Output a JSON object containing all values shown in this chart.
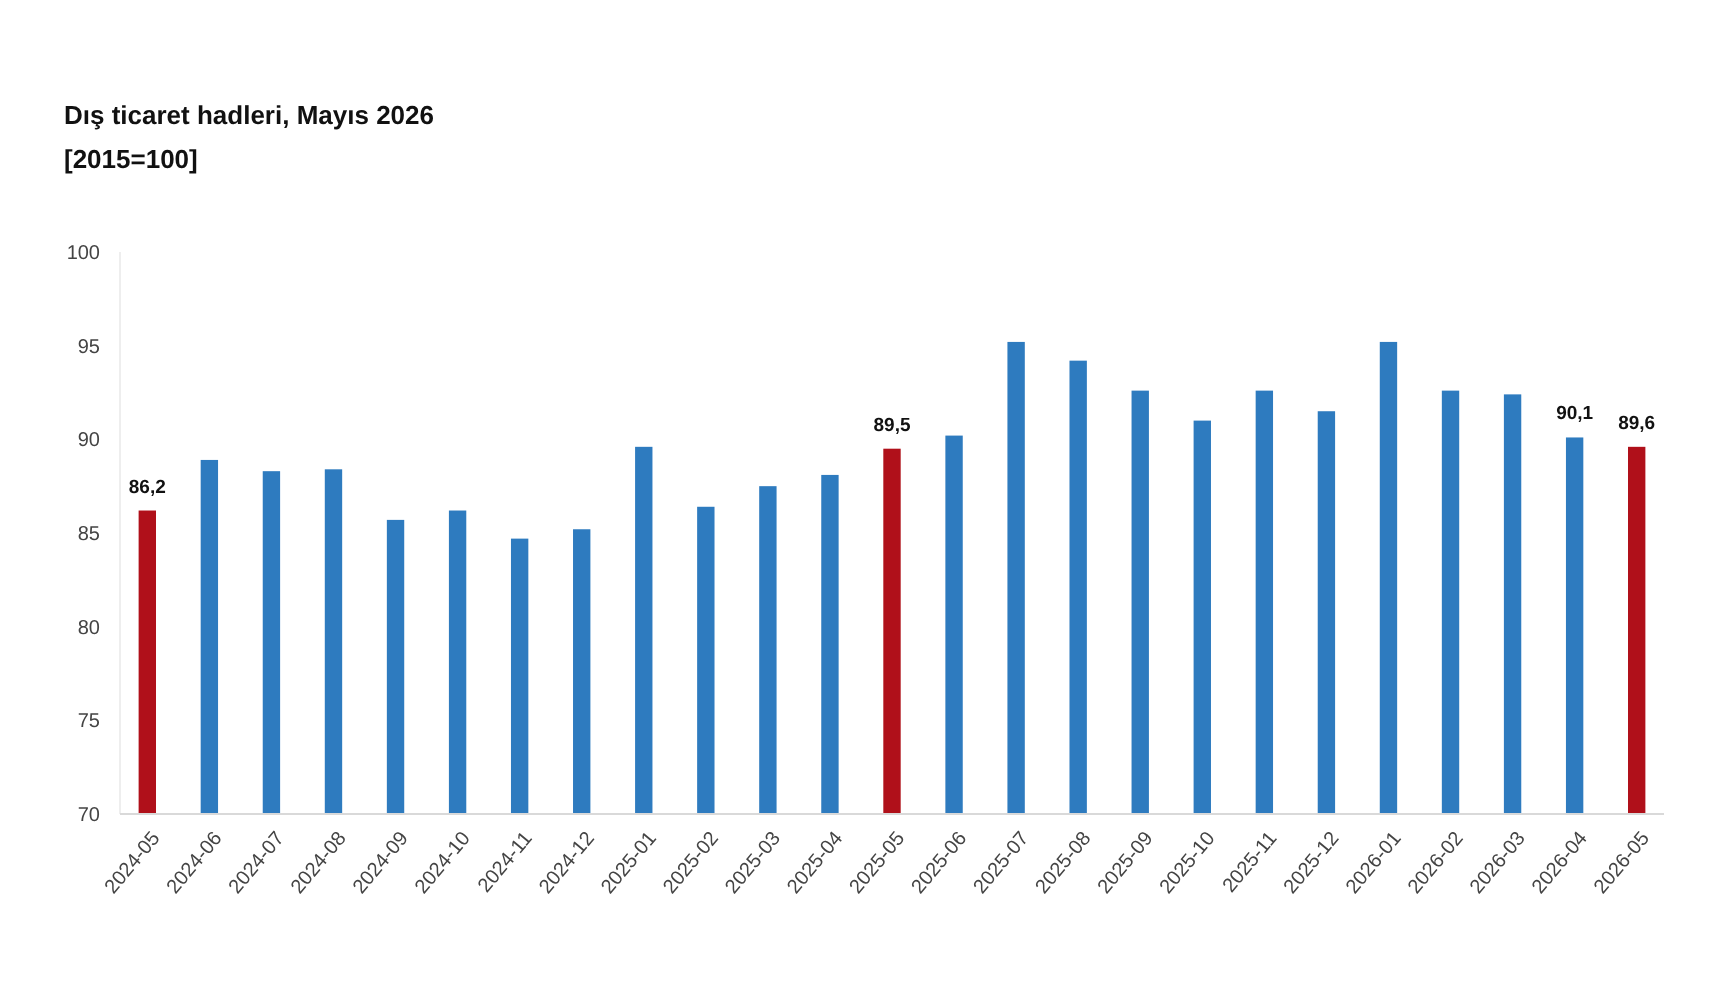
{
  "chart_data": {
    "type": "bar",
    "title": "Dış ticaret hadleri, Mayıs 2026",
    "subtitle": "[2015=100]",
    "categories": [
      "2024-05",
      "2024-06",
      "2024-07",
      "2024-08",
      "2024-09",
      "2024-10",
      "2024-11",
      "2024-12",
      "2025-01",
      "2025-02",
      "2025-03",
      "2025-04",
      "2025-05",
      "2025-06",
      "2025-07",
      "2025-08",
      "2025-09",
      "2025-10",
      "2025-11",
      "2025-12",
      "2026-01",
      "2026-02",
      "2026-03",
      "2026-04",
      "2026-05"
    ],
    "values": [
      86.2,
      88.9,
      88.3,
      88.4,
      85.7,
      86.2,
      84.7,
      85.2,
      89.6,
      86.4,
      87.5,
      88.1,
      89.5,
      90.2,
      95.2,
      94.2,
      92.6,
      91.0,
      92.6,
      91.5,
      95.2,
      92.6,
      92.4,
      90.1,
      89.6
    ],
    "colors": [
      "#b0101a",
      "#2e7bbf",
      "#2e7bbf",
      "#2e7bbf",
      "#2e7bbf",
      "#2e7bbf",
      "#2e7bbf",
      "#2e7bbf",
      "#2e7bbf",
      "#2e7bbf",
      "#2e7bbf",
      "#2e7bbf",
      "#b0101a",
      "#2e7bbf",
      "#2e7bbf",
      "#2e7bbf",
      "#2e7bbf",
      "#2e7bbf",
      "#2e7bbf",
      "#2e7bbf",
      "#2e7bbf",
      "#2e7bbf",
      "#2e7bbf",
      "#2e7bbf",
      "#b0101a"
    ],
    "value_labels": [
      "86,2",
      null,
      null,
      null,
      null,
      null,
      null,
      null,
      null,
      null,
      null,
      null,
      "89,5",
      null,
      null,
      null,
      null,
      null,
      null,
      null,
      null,
      null,
      null,
      "90,1",
      "89,6"
    ],
    "ylim": [
      70,
      100
    ],
    "yticks": [
      70,
      75,
      80,
      85,
      90,
      95,
      100
    ],
    "grid": false
  }
}
